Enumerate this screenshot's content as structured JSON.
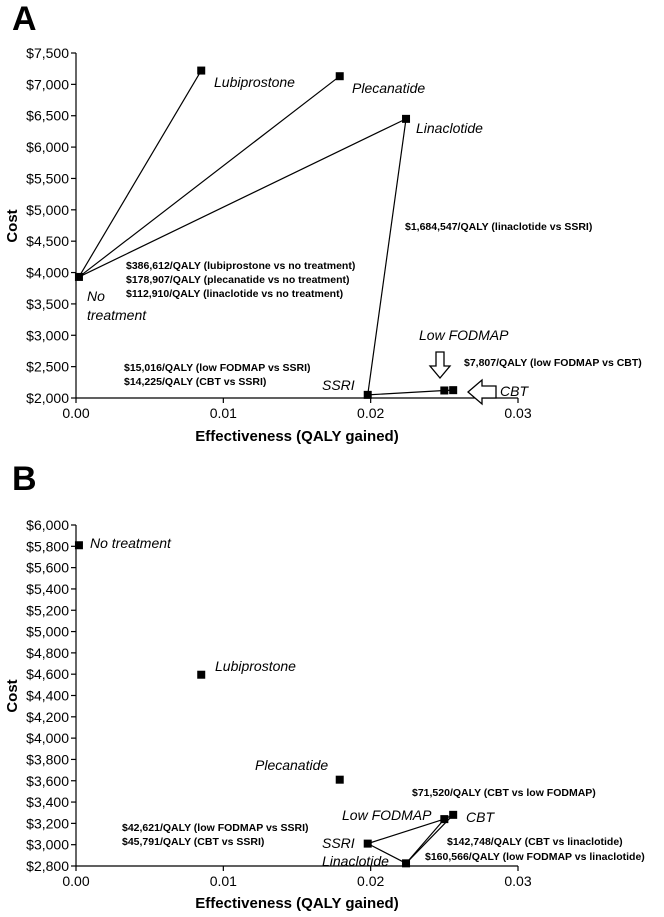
{
  "chart_data": [
    {
      "panel": "A",
      "type": "scatter",
      "xlabel": "Effectiveness (QALY gained)",
      "ylabel": "Cost",
      "xlim": [
        0,
        0.03
      ],
      "ylim": [
        2000,
        7500
      ],
      "x_ticks": [
        "0.00",
        "0.01",
        "0.02",
        "0.03"
      ],
      "y_ticks": [
        "$2,000",
        "$2,500",
        "$3,000",
        "$3,500",
        "$4,000",
        "$4,500",
        "$5,000",
        "$5,500",
        "$6,000",
        "$6,500",
        "$7,000",
        "$7,500"
      ],
      "points": [
        {
          "name": "No treatment",
          "x": 0.0002,
          "y": 3930
        },
        {
          "name": "Lubiprostone",
          "x": 0.0085,
          "y": 7220
        },
        {
          "name": "Plecanatide",
          "x": 0.0179,
          "y": 7130
        },
        {
          "name": "Linaclotide",
          "x": 0.0224,
          "y": 6450
        },
        {
          "name": "SSRI",
          "x": 0.0198,
          "y": 2050
        },
        {
          "name": "Low FODMAP",
          "x": 0.025,
          "y": 2120
        },
        {
          "name": "CBT",
          "x": 0.0256,
          "y": 2125
        }
      ],
      "annotations": [
        "$386,612/QALY (lubiprostone vs no treatment)",
        "$178,907/QALY (plecanatide vs no treatment)",
        "$112,910/QALY (linaclotide vs no treatment)",
        "$1,684,547/QALY (linaclotide vs SSRI)",
        "$15,016/QALY (low FODMAP vs SSRI)",
        "$14,225/QALY (CBT vs SSRI)",
        "$7,807/QALY (low FODMAP vs CBT)"
      ]
    },
    {
      "panel": "B",
      "type": "scatter",
      "xlabel": "Effectiveness (QALY gained)",
      "ylabel": "Cost",
      "xlim": [
        0,
        0.03
      ],
      "ylim": [
        2800,
        6000
      ],
      "x_ticks": [
        "0.00",
        "0.01",
        "0.02",
        "0.03"
      ],
      "y_ticks": [
        "$2,800",
        "$3,000",
        "$3,200",
        "$3,400",
        "$3,600",
        "$3,800",
        "$4,000",
        "$4,200",
        "$4,400",
        "$4,600",
        "$4,800",
        "$5,000",
        "$5,200",
        "$5,400",
        "$5,600",
        "$5,800",
        "$6,000"
      ],
      "points": [
        {
          "name": "No treatment",
          "x": 0.0002,
          "y": 5810
        },
        {
          "name": "Lubiprostone",
          "x": 0.0085,
          "y": 4595
        },
        {
          "name": "Plecanatide",
          "x": 0.0179,
          "y": 3610
        },
        {
          "name": "Low FODMAP",
          "x": 0.025,
          "y": 3240
        },
        {
          "name": "CBT",
          "x": 0.0256,
          "y": 3280
        },
        {
          "name": "SSRI",
          "x": 0.0198,
          "y": 3010
        },
        {
          "name": "Linaclotide",
          "x": 0.0224,
          "y": 2825
        }
      ],
      "annotations": [
        "$71,520/QALY (CBT vs low FODMAP)",
        "$42,621/QALY (low FODMAP vs SSRI)",
        "$45,791/QALY (CBT vs SSRI)",
        "$142,748/QALY (CBT vs linaclotide)",
        "$160,566/QALY (low FODMAP vs linaclotide)"
      ]
    }
  ]
}
